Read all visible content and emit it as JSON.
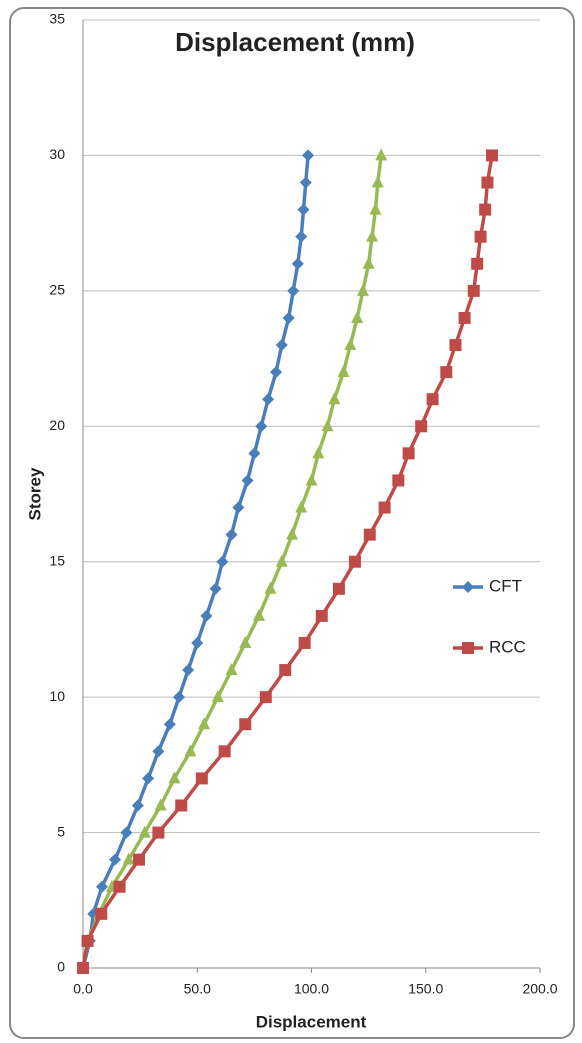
{
  "chart_data": {
    "type": "line",
    "title": "Displacement (mm)",
    "x_label": "Displacement",
    "y_label": "Storey",
    "xlim": [
      0,
      200
    ],
    "ylim": [
      0,
      35
    ],
    "xticks": [
      {
        "value": 0,
        "label": "0.0"
      },
      {
        "value": 50,
        "label": "50.0"
      },
      {
        "value": 100,
        "label": "100.0"
      },
      {
        "value": 150,
        "label": "150.0"
      },
      {
        "value": 200,
        "label": "200.0"
      }
    ],
    "yticks": [
      0,
      5,
      10,
      15,
      20,
      25,
      30,
      35
    ],
    "grid": true,
    "legend": "right",
    "series": [
      {
        "name": "CFT",
        "color": "#4a7ebb",
        "marker": "diamond",
        "x": [
          0,
          3,
          4.5,
          8.3,
          14,
          19,
          24,
          28.5,
          33,
          38,
          42,
          46,
          50,
          54,
          58,
          61,
          65,
          68,
          72,
          75,
          78,
          81,
          84.5,
          87,
          90,
          92,
          94,
          95.5,
          96.5,
          97.5,
          98.5
        ],
        "values": [
          0,
          1,
          2,
          3,
          4,
          5,
          6,
          7,
          8,
          9,
          10,
          11,
          12,
          13,
          14,
          15,
          16,
          17,
          18,
          19,
          20,
          21,
          22,
          23,
          24,
          25,
          26,
          27,
          28,
          29,
          30
        ]
      },
      {
        "color": "#98b954",
        "marker": "triangle",
        "x": [
          0,
          2,
          7,
          12.7,
          20,
          27,
          34,
          40,
          47,
          53,
          59,
          65,
          71,
          77,
          82,
          87,
          91.5,
          95.5,
          100,
          103,
          107,
          110,
          114,
          117,
          120,
          122.5,
          125,
          126.5,
          128,
          129,
          130.5
        ],
        "values": [
          0,
          1,
          2,
          3,
          4,
          5,
          6,
          7,
          8,
          9,
          10,
          11,
          12,
          13,
          14,
          15,
          16,
          17,
          18,
          19,
          20,
          21,
          22,
          23,
          24,
          25,
          26,
          27,
          28,
          29,
          30
        ]
      },
      {
        "name": "RCC",
        "color": "#be4b48",
        "marker": "square",
        "x": [
          0,
          2,
          8,
          16,
          24.5,
          33,
          43,
          52,
          62,
          71,
          80,
          88.5,
          97,
          104.5,
          112,
          119,
          125.5,
          132,
          138,
          142.5,
          148,
          153,
          159,
          163,
          167,
          171,
          172.5,
          174,
          176,
          177,
          179
        ],
        "values": [
          0,
          1,
          2,
          3,
          4,
          5,
          6,
          7,
          8,
          9,
          10,
          11,
          12,
          13,
          14,
          15,
          16,
          17,
          18,
          19,
          20,
          21,
          22,
          23,
          24,
          25,
          26,
          27,
          28,
          29,
          30
        ]
      }
    ]
  }
}
